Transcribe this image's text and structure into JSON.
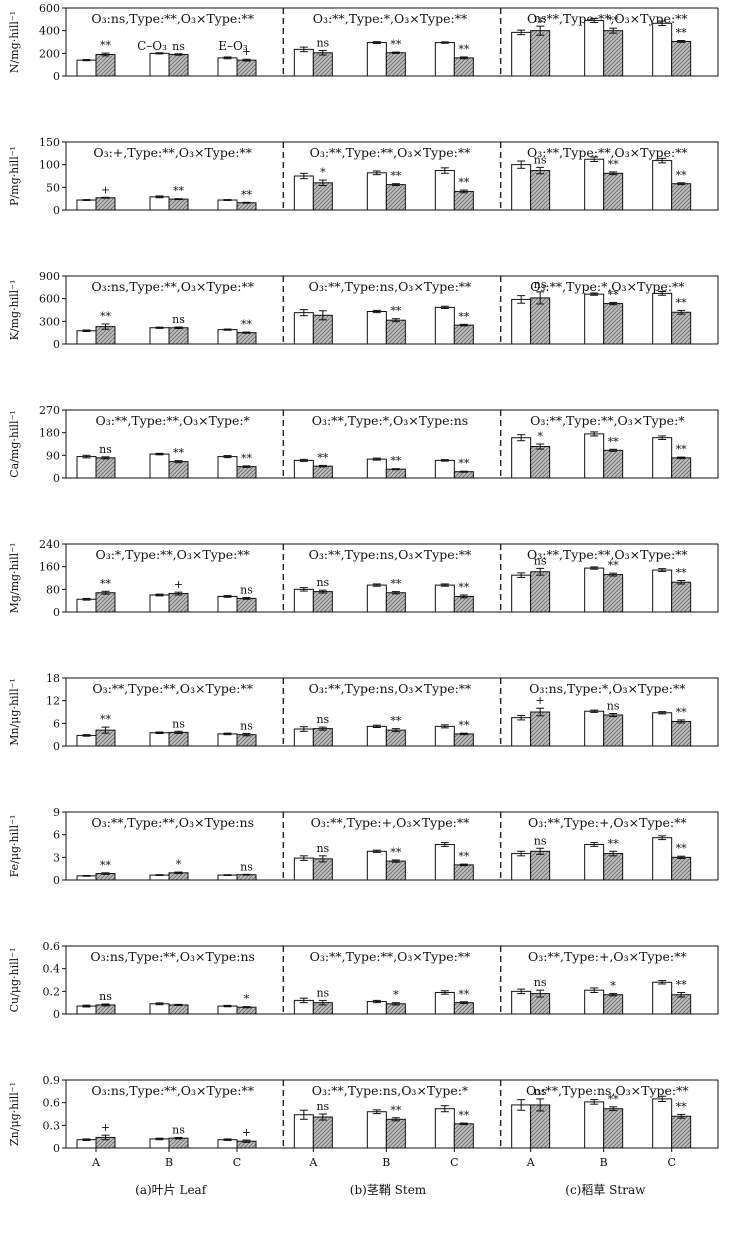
{
  "legend": {
    "control": "C–O₃",
    "elevated": "E–O₃"
  },
  "colors": {
    "control_fill": "#ffffff",
    "elevated_fill": "#b9b9b9",
    "axis": "#111111"
  },
  "sections": [
    "(a)叶片 Leaf",
    "(b)茎鞘 Stem",
    "(c)稻草 Straw"
  ],
  "categories": [
    "A",
    "B",
    "C"
  ],
  "chart_data": [
    {
      "type": "bar",
      "ylabel": "N/mg·hill⁻¹",
      "ylim": [
        0,
        600
      ],
      "yticks": [
        0,
        200,
        400,
        600
      ],
      "annotations": [
        "O₃:ns,Type:**,O₃×Type:**",
        "O₃:**,Type:*,O₃×Type:**",
        "O₃:**,Type:**,O₃×Type:**"
      ],
      "series": [
        {
          "name": "C–O₃",
          "values": [
            [
              140,
              200,
              160
            ],
            [
              235,
              295,
              295
            ],
            [
              385,
              490,
              465
            ]
          ],
          "errors": [
            [
              5,
              5,
              8
            ],
            [
              20,
              8,
              6
            ],
            [
              20,
              18,
              20
            ]
          ]
        },
        {
          "name": "E–O₃",
          "values": [
            [
              190,
              190,
              140
            ],
            [
              205,
              205,
              160
            ],
            [
              400,
              400,
              305
            ]
          ],
          "errors": [
            [
              12,
              6,
              8
            ],
            [
              20,
              6,
              8
            ],
            [
              40,
              22,
              8
            ]
          ]
        }
      ],
      "significance": [
        [
          "**",
          "ns",
          "+"
        ],
        [
          "ns",
          "**",
          "**"
        ],
        [
          "ns",
          "**",
          "**"
        ]
      ]
    },
    {
      "type": "bar",
      "ylabel": "P/mg·hill⁻¹",
      "ylim": [
        0,
        150
      ],
      "yticks": [
        0,
        50,
        100,
        150
      ],
      "annotations": [
        "O₃:+,Type:**,O₃×Type:**",
        "O₃:**,Type:**,O₃×Type:**",
        "O₃:**,Type:**,O₃×Type:**"
      ],
      "series": [
        {
          "name": "C–O₃",
          "values": [
            [
              22,
              29,
              22
            ],
            [
              75,
              82,
              87
            ],
            [
              100,
              112,
              109
            ]
          ],
          "errors": [
            [
              1,
              2,
              1
            ],
            [
              6,
              4,
              6
            ],
            [
              8,
              5,
              5
            ]
          ]
        },
        {
          "name": "E–O₃",
          "values": [
            [
              27,
              24,
              16
            ],
            [
              60,
              56,
              41
            ],
            [
              87,
              81,
              58
            ]
          ],
          "errors": [
            [
              1,
              1,
              1
            ],
            [
              6,
              2,
              3
            ],
            [
              7,
              3,
              2
            ]
          ]
        }
      ],
      "significance": [
        [
          "+",
          "**",
          "**"
        ],
        [
          "*",
          "**",
          "**"
        ],
        [
          "ns",
          "**",
          "**"
        ]
      ]
    },
    {
      "type": "bar",
      "ylabel": "K/mg·hill⁻¹",
      "ylim": [
        0,
        900
      ],
      "yticks": [
        0,
        300,
        600,
        900
      ],
      "annotations": [
        "O₃:ns,Type:**,O₃×Type:**",
        "O₃:**,Type:ns,O₃×Type:**",
        "O₃:**,Type:*,O₃×Type:**"
      ],
      "series": [
        {
          "name": "C–O₃",
          "values": [
            [
              175,
              215,
              190
            ],
            [
              415,
              430,
              485
            ],
            [
              590,
              660,
              670
            ]
          ],
          "errors": [
            [
              10,
              8,
              8
            ],
            [
              40,
              15,
              15
            ],
            [
              50,
              15,
              25
            ]
          ]
        },
        {
          "name": "E–O₃",
          "values": [
            [
              230,
              215,
              150
            ],
            [
              380,
              315,
              250
            ],
            [
              610,
              535,
              420
            ]
          ],
          "errors": [
            [
              35,
              10,
              8
            ],
            [
              60,
              20,
              10
            ],
            [
              80,
              15,
              25
            ]
          ]
        }
      ],
      "significance": [
        [
          "**",
          "ns",
          "**"
        ],
        [
          "",
          "**",
          "**"
        ],
        [
          "ns",
          "**",
          "**"
        ]
      ]
    },
    {
      "type": "bar",
      "ylabel": "Ca/mg·hill⁻¹",
      "ylim": [
        0,
        270
      ],
      "yticks": [
        0,
        90,
        180,
        270
      ],
      "annotations": [
        "O₃:**,Type:**,O₃×Type:*",
        "O₃:**,Type:*,O₃×Type:ns",
        "O₃:**,Type:**,O₃×Type:*"
      ],
      "series": [
        {
          "name": "C–O₃",
          "values": [
            [
              85,
              95,
              85
            ],
            [
              70,
              75,
              70
            ],
            [
              160,
              175,
              160
            ]
          ],
          "errors": [
            [
              5,
              3,
              4
            ],
            [
              4,
              4,
              3
            ],
            [
              12,
              8,
              7
            ]
          ]
        },
        {
          "name": "E–O₃",
          "values": [
            [
              80,
              65,
              45
            ],
            [
              47,
              35,
              25
            ],
            [
              125,
              110,
              80
            ]
          ],
          "errors": [
            [
              4,
              4,
              3
            ],
            [
              3,
              2,
              2
            ],
            [
              10,
              4,
              3
            ]
          ]
        }
      ],
      "significance": [
        [
          "ns",
          "**",
          "**"
        ],
        [
          "**",
          "**",
          "**"
        ],
        [
          "*",
          "**",
          "**"
        ]
      ]
    },
    {
      "type": "bar",
      "ylabel": "Mg/mg·hill⁻¹",
      "ylim": [
        0,
        240
      ],
      "yticks": [
        0,
        80,
        160,
        240
      ],
      "annotations": [
        "O₃:*,Type:**,O₃×Type:**",
        "O₃:**,Type:ns,O₃×Type:**",
        "O₃:**,Type:**,O₃×Type:**"
      ],
      "series": [
        {
          "name": "C–O₃",
          "values": [
            [
              45,
              60,
              55
            ],
            [
              80,
              95,
              95
            ],
            [
              130,
              155,
              148
            ]
          ],
          "errors": [
            [
              3,
              3,
              3
            ],
            [
              6,
              4,
              4
            ],
            [
              8,
              4,
              5
            ]
          ]
        },
        {
          "name": "E–O₃",
          "values": [
            [
              68,
              65,
              48
            ],
            [
              72,
              68,
              55
            ],
            [
              142,
              132,
              105
            ]
          ],
          "errors": [
            [
              5,
              5,
              3
            ],
            [
              5,
              4,
              5
            ],
            [
              12,
              5,
              6
            ]
          ]
        }
      ],
      "significance": [
        [
          "**",
          "+",
          "ns"
        ],
        [
          "ns",
          "**",
          "**"
        ],
        [
          "ns",
          "**",
          "**"
        ]
      ]
    },
    {
      "type": "bar",
      "ylabel": "Mn/μg·hill⁻¹",
      "ylim": [
        0,
        18
      ],
      "yticks": [
        0,
        6,
        12,
        18
      ],
      "annotations": [
        "O₃:**,Type:**,O₃×Type:**",
        "O₃:**,Type:ns,O₃×Type:**",
        "O₃:ns,Type:*,O₃×Type:**"
      ],
      "series": [
        {
          "name": "C–O₃",
          "values": [
            [
              2.8,
              3.5,
              3.2
            ],
            [
              4.5,
              5.2,
              5.2
            ],
            [
              7.5,
              9.2,
              8.8
            ]
          ],
          "errors": [
            [
              0.2,
              0.2,
              0.2
            ],
            [
              0.6,
              0.3,
              0.4
            ],
            [
              0.6,
              0.3,
              0.3
            ]
          ]
        },
        {
          "name": "E–O₃",
          "values": [
            [
              4.2,
              3.6,
              3.0
            ],
            [
              4.6,
              4.2,
              3.2
            ],
            [
              9.0,
              8.2,
              6.5
            ]
          ],
          "errors": [
            [
              0.8,
              0.3,
              0.3
            ],
            [
              0.4,
              0.4,
              0.2
            ],
            [
              1.0,
              0.4,
              0.4
            ]
          ]
        }
      ],
      "significance": [
        [
          "**",
          "ns",
          "ns"
        ],
        [
          "ns",
          "**",
          "**"
        ],
        [
          "+",
          "ns",
          "**"
        ]
      ]
    },
    {
      "type": "bar",
      "ylabel": "Fe/μg·hill⁻¹",
      "ylim": [
        0,
        9
      ],
      "yticks": [
        0,
        3,
        6,
        9
      ],
      "annotations": [
        "O₃:**,Type:**,O₃×Type:ns",
        "O₃:**,Type:+,O₃×Type:**",
        "O₃:**,Type:+,O₃×Type:**"
      ],
      "series": [
        {
          "name": "C–O₃",
          "values": [
            [
              0.55,
              0.65,
              0.65
            ],
            [
              2.9,
              3.8,
              4.7
            ],
            [
              3.5,
              4.7,
              5.6
            ]
          ],
          "errors": [
            [
              0.05,
              0.05,
              0.05
            ],
            [
              0.3,
              0.15,
              0.25
            ],
            [
              0.3,
              0.25,
              0.25
            ]
          ]
        },
        {
          "name": "E–O₃",
          "values": [
            [
              0.85,
              0.95,
              0.7
            ],
            [
              2.8,
              2.5,
              2.0
            ],
            [
              3.8,
              3.5,
              3.0
            ]
          ],
          "errors": [
            [
              0.1,
              0.1,
              0.05
            ],
            [
              0.4,
              0.15,
              0.1
            ],
            [
              0.4,
              0.3,
              0.15
            ]
          ]
        }
      ],
      "significance": [
        [
          "**",
          "*",
          "ns"
        ],
        [
          "ns",
          "**",
          "**"
        ],
        [
          "ns",
          "**",
          "**"
        ]
      ]
    },
    {
      "type": "bar",
      "ylabel": "Cu/μg·hill⁻¹",
      "ylim": [
        0,
        0.6
      ],
      "yticks": [
        0,
        0.2,
        0.4,
        0.6
      ],
      "annotations": [
        "O₃:ns,Type:**,O₃×Type:ns",
        "O₃:**,Type:**,O₃×Type:**",
        "O₃:**,Type:+,O₃×Type:**"
      ],
      "series": [
        {
          "name": "C–O₃",
          "values": [
            [
              0.07,
              0.09,
              0.07
            ],
            [
              0.12,
              0.11,
              0.19
            ],
            [
              0.2,
              0.21,
              0.28
            ]
          ],
          "errors": [
            [
              0.008,
              0.008,
              0.006
            ],
            [
              0.02,
              0.01,
              0.015
            ],
            [
              0.02,
              0.02,
              0.015
            ]
          ]
        },
        {
          "name": "E–O₃",
          "values": [
            [
              0.08,
              0.08,
              0.06
            ],
            [
              0.1,
              0.09,
              0.1
            ],
            [
              0.18,
              0.17,
              0.17
            ]
          ],
          "errors": [
            [
              0.008,
              0.005,
              0.005
            ],
            [
              0.02,
              0.01,
              0.008
            ],
            [
              0.03,
              0.01,
              0.02
            ]
          ]
        }
      ],
      "significance": [
        [
          "ns",
          "",
          "*"
        ],
        [
          "ns",
          "*",
          "**"
        ],
        [
          "ns",
          "*",
          "**"
        ]
      ]
    },
    {
      "type": "bar",
      "ylabel": "Zn/μg·hill⁻¹",
      "ylim": [
        0,
        0.9
      ],
      "yticks": [
        0,
        0.3,
        0.6,
        0.9
      ],
      "annotations": [
        "O₃:ns,Type:**,O₃×Type:**",
        "O₃:**,Type:ns,O₃×Type:*",
        "O₃:**,Type:ns,O₃×Type:**"
      ],
      "series": [
        {
          "name": "C–O₃",
          "values": [
            [
              0.11,
              0.12,
              0.11
            ],
            [
              0.44,
              0.48,
              0.52
            ],
            [
              0.57,
              0.61,
              0.65
            ]
          ],
          "errors": [
            [
              0.01,
              0.01,
              0.01
            ],
            [
              0.06,
              0.025,
              0.04
            ],
            [
              0.07,
              0.03,
              0.035
            ]
          ]
        },
        {
          "name": "E–O₃",
          "values": [
            [
              0.14,
              0.13,
              0.09
            ],
            [
              0.41,
              0.38,
              0.32
            ],
            [
              0.57,
              0.52,
              0.42
            ]
          ],
          "errors": [
            [
              0.03,
              0.01,
              0.015
            ],
            [
              0.04,
              0.02,
              0.01
            ],
            [
              0.08,
              0.025,
              0.025
            ]
          ]
        }
      ],
      "significance": [
        [
          "+",
          "ns",
          "+"
        ],
        [
          "ns",
          "**",
          "**"
        ],
        [
          "ns",
          "**",
          "**"
        ]
      ]
    }
  ]
}
